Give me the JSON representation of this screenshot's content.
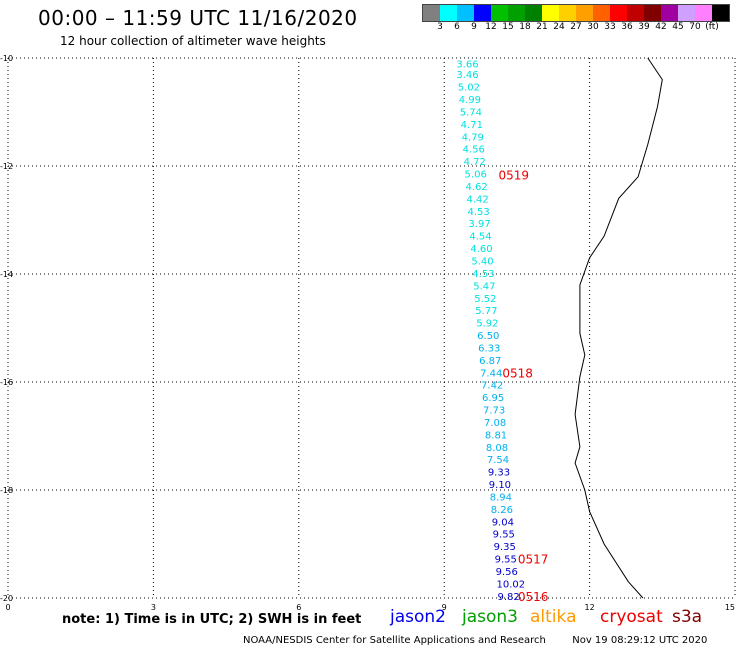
{
  "header": {
    "title": "00:00 – 11:59 UTC 11/16/2020",
    "subtitle": "12 hour collection of altimeter wave heights"
  },
  "colorbar": {
    "colors": [
      "#808080",
      "#00ffff",
      "#00c0ff",
      "#0000ff",
      "#00c000",
      "#00a000",
      "#008000",
      "#ffff00",
      "#ffd000",
      "#ffa000",
      "#ff6000",
      "#ff0000",
      "#c00000",
      "#800000",
      "#a000a0",
      "#d0a0ff",
      "#ff80ff",
      "#000000"
    ],
    "labels": [
      "3",
      "6",
      "9",
      "12",
      "15",
      "18",
      "21",
      "24",
      "27",
      "30",
      "33",
      "36",
      "39",
      "42",
      "45",
      "70",
      "(ft)"
    ]
  },
  "axes": {
    "y_ticks": [
      "-10",
      "-12",
      "-14",
      "-16",
      "-18",
      "-20"
    ],
    "x_ticks": [
      "0",
      "3",
      "6",
      "9",
      "12",
      "15"
    ]
  },
  "track": {
    "points": [
      {
        "lon": 9.25,
        "lat": -10.1,
        "swh": "3.66",
        "color": "#00e0e0"
      },
      {
        "lon": 9.25,
        "lat": -10.3,
        "swh": "3.46",
        "color": "#00e0e0"
      },
      {
        "lon": 9.28,
        "lat": -10.53,
        "swh": "5.02",
        "color": "#00e0e0"
      },
      {
        "lon": 9.3,
        "lat": -10.76,
        "swh": "4.99",
        "color": "#00e0e0"
      },
      {
        "lon": 9.32,
        "lat": -10.99,
        "swh": "5.74",
        "color": "#00e0e0"
      },
      {
        "lon": 9.34,
        "lat": -11.22,
        "swh": "4.71",
        "color": "#00e0e0"
      },
      {
        "lon": 9.36,
        "lat": -11.45,
        "swh": "4.79",
        "color": "#00e0e0"
      },
      {
        "lon": 9.38,
        "lat": -11.68,
        "swh": "4.56",
        "color": "#00e0e0"
      },
      {
        "lon": 9.4,
        "lat": -11.91,
        "swh": "4.72",
        "color": "#00e0e0"
      },
      {
        "lon": 9.42,
        "lat": -12.14,
        "swh": "5.06",
        "color": "#00e0e0"
      },
      {
        "lon": 9.44,
        "lat": -12.37,
        "swh": "4.62",
        "color": "#00e0e0"
      },
      {
        "lon": 9.46,
        "lat": -12.6,
        "swh": "4.42",
        "color": "#00e0e0"
      },
      {
        "lon": 9.48,
        "lat": -12.83,
        "swh": "4.53",
        "color": "#00e0e0"
      },
      {
        "lon": 9.5,
        "lat": -13.06,
        "swh": "3.97",
        "color": "#00e0e0"
      },
      {
        "lon": 9.52,
        "lat": -13.29,
        "swh": "4.54",
        "color": "#00e0e0"
      },
      {
        "lon": 9.54,
        "lat": -13.52,
        "swh": "4.60",
        "color": "#00e0e0"
      },
      {
        "lon": 9.56,
        "lat": -13.75,
        "swh": "5.40",
        "color": "#00e0e0"
      },
      {
        "lon": 9.58,
        "lat": -13.98,
        "swh": "4.53",
        "color": "#00e0e0"
      },
      {
        "lon": 9.6,
        "lat": -14.21,
        "swh": "5.47",
        "color": "#00e0e0"
      },
      {
        "lon": 9.62,
        "lat": -14.44,
        "swh": "5.52",
        "color": "#00e0e0"
      },
      {
        "lon": 9.64,
        "lat": -14.67,
        "swh": "5.77",
        "color": "#00e0e0"
      },
      {
        "lon": 9.66,
        "lat": -14.9,
        "swh": "5.92",
        "color": "#00e0e0"
      },
      {
        "lon": 9.68,
        "lat": -15.13,
        "swh": "6.50",
        "color": "#00b0ee"
      },
      {
        "lon": 9.7,
        "lat": -15.36,
        "swh": "6.33",
        "color": "#00b0ee"
      },
      {
        "lon": 9.72,
        "lat": -15.59,
        "swh": "6.87",
        "color": "#00b0ee"
      },
      {
        "lon": 9.74,
        "lat": -15.82,
        "swh": "7.44",
        "color": "#00b0ee"
      },
      {
        "lon": 9.76,
        "lat": -16.05,
        "swh": "7.42",
        "color": "#00b0ee"
      },
      {
        "lon": 9.78,
        "lat": -16.28,
        "swh": "6.95",
        "color": "#00b0ee"
      },
      {
        "lon": 9.8,
        "lat": -16.51,
        "swh": "7.73",
        "color": "#00b0ee"
      },
      {
        "lon": 9.82,
        "lat": -16.74,
        "swh": "7.08",
        "color": "#00b0ee"
      },
      {
        "lon": 9.84,
        "lat": -16.97,
        "swh": "8.81",
        "color": "#00b0ee"
      },
      {
        "lon": 9.86,
        "lat": -17.2,
        "swh": "8.08",
        "color": "#00b0ee"
      },
      {
        "lon": 9.88,
        "lat": -17.43,
        "swh": "7.54",
        "color": "#00b0ee"
      },
      {
        "lon": 9.9,
        "lat": -17.66,
        "swh": "9.33",
        "color": "#0000cc"
      },
      {
        "lon": 9.92,
        "lat": -17.89,
        "swh": "9.10",
        "color": "#0000cc"
      },
      {
        "lon": 9.94,
        "lat": -18.12,
        "swh": "8.94",
        "color": "#00b0ee"
      },
      {
        "lon": 9.96,
        "lat": -18.35,
        "swh": "8.26",
        "color": "#00b0ee"
      },
      {
        "lon": 9.98,
        "lat": -18.58,
        "swh": "9.04",
        "color": "#0000cc"
      },
      {
        "lon": 10.0,
        "lat": -18.81,
        "swh": "9.55",
        "color": "#0000cc"
      },
      {
        "lon": 10.02,
        "lat": -19.04,
        "swh": "9.35",
        "color": "#0000cc"
      },
      {
        "lon": 10.04,
        "lat": -19.27,
        "swh": "9.55",
        "color": "#0000cc"
      },
      {
        "lon": 10.06,
        "lat": -19.5,
        "swh": "9.56",
        "color": "#0000cc"
      },
      {
        "lon": 10.08,
        "lat": -19.73,
        "swh": "10.02",
        "color": "#0000cc"
      },
      {
        "lon": 10.1,
        "lat": -19.96,
        "swh": "9.82",
        "color": "#0000cc"
      }
    ],
    "time_labels": [
      {
        "lon": 10.12,
        "lat": -12.16,
        "label": "0519"
      },
      {
        "lon": 10.2,
        "lat": -15.82,
        "label": "0518"
      },
      {
        "lon": 10.52,
        "lat": -19.27,
        "label": "0517"
      },
      {
        "lon": 10.52,
        "lat": -19.96,
        "label": "0516"
      }
    ],
    "time_label_color": "#ee0000"
  },
  "coastline": {
    "color": "#000000",
    "points": [
      [
        13.2,
        -10.0
      ],
      [
        13.5,
        -10.4
      ],
      [
        13.4,
        -10.9
      ],
      [
        13.2,
        -11.6
      ],
      [
        13.0,
        -12.2
      ],
      [
        12.6,
        -12.6
      ],
      [
        12.3,
        -13.3
      ],
      [
        12.0,
        -13.7
      ],
      [
        11.8,
        -14.2
      ],
      [
        11.8,
        -15.1
      ],
      [
        11.9,
        -15.5
      ],
      [
        11.8,
        -15.9
      ],
      [
        11.7,
        -16.6
      ],
      [
        11.8,
        -17.2
      ],
      [
        11.7,
        -17.5
      ],
      [
        11.9,
        -18.0
      ],
      [
        12.0,
        -18.4
      ],
      [
        12.3,
        -19.0
      ],
      [
        12.8,
        -19.7
      ],
      [
        13.1,
        -20.0
      ]
    ]
  },
  "legend": {
    "note": "note: 1) Time is in UTC; 2) SWH is in feet",
    "satellites": [
      {
        "name": "jason2",
        "color": "#0000ee"
      },
      {
        "name": "jason3",
        "color": "#00a000"
      },
      {
        "name": "altika",
        "color": "#ff9900"
      },
      {
        "name": "cryosat",
        "color": "#ee0000"
      },
      {
        "name": "s3a",
        "color": "#800000"
      }
    ]
  },
  "footer": {
    "credit": "NOAA/NESDIS Center for Satellite Applications and Research",
    "timestamp": "Nov 19 08:29:12 UTC 2020"
  }
}
